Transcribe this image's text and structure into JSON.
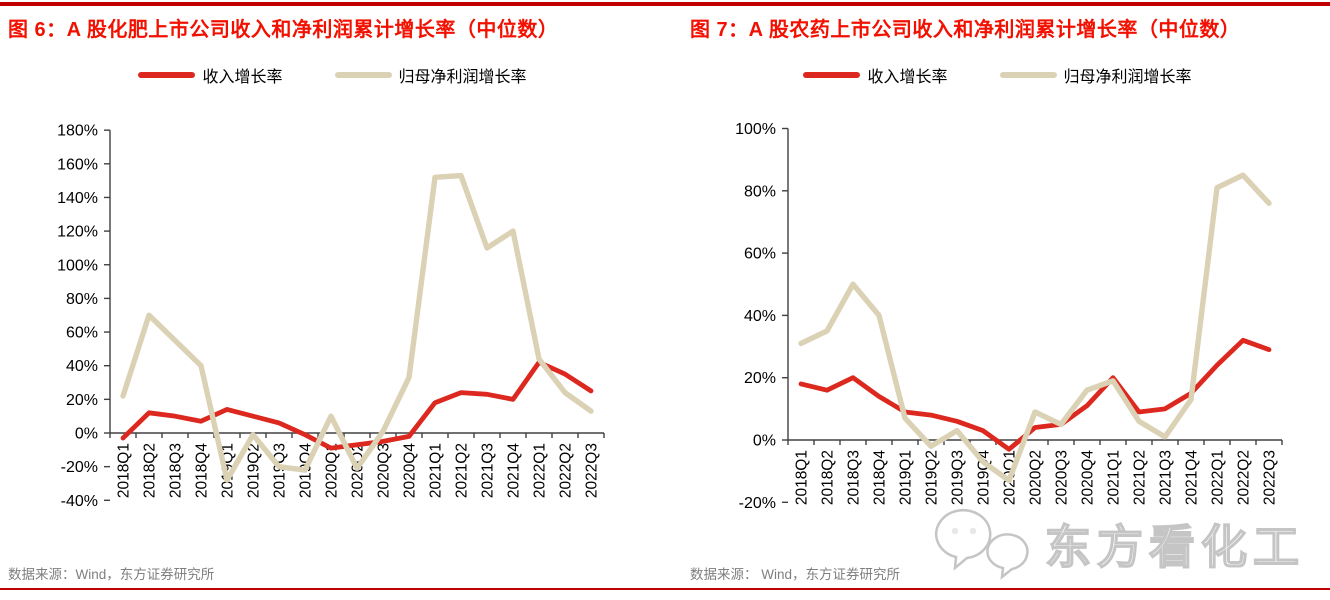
{
  "page": {
    "accent_red": "#c00000",
    "title_color": "#f21000",
    "axis_color": "#404040",
    "label_color": "#000000",
    "footer_color": "#7f7f7f"
  },
  "figures": [
    {
      "title": "图 6：A 股化肥上市公司收入和净利润累计增长率（中位数）",
      "source_note": "数据来源：Wind，东方证券研究所",
      "chart_data": {
        "type": "line",
        "title": "A股化肥上市公司收入和净利润累计增长率（中位数）",
        "categories": [
          "2018Q1",
          "2018Q2",
          "2018Q3",
          "2018Q4",
          "2019Q1",
          "2019Q2",
          "2019Q3",
          "2019Q4",
          "2020Q1",
          "2020Q2",
          "2020Q3",
          "2020Q4",
          "2021Q1",
          "2021Q2",
          "2021Q3",
          "2021Q4",
          "2022Q1",
          "2022Q2",
          "2022Q3"
        ],
        "series": [
          {
            "name": "收入增长率",
            "color": "#dc281e",
            "values": [
              -3,
              12,
              10,
              7,
              14,
              10,
              6,
              -1,
              -9,
              -7,
              -5,
              -2,
              18,
              24,
              23,
              20,
              42,
              35,
              25
            ]
          },
          {
            "name": "归母净利润增长率",
            "color": "#dbd1b4",
            "values": [
              22,
              70,
              55,
              40,
              -28,
              -1,
              -20,
              -22,
              10,
              -21,
              1,
              33,
              152,
              153,
              110,
              120,
              44,
              24,
              13
            ]
          }
        ],
        "ylim": [
          -40,
          180
        ],
        "yticks": [
          180,
          160,
          140,
          120,
          100,
          80,
          60,
          40,
          20,
          0,
          -20,
          -40
        ],
        "ytick_suffix": "%",
        "grid": false,
        "legend_position": "top"
      }
    },
    {
      "title": "图 7：A 股农药上市公司收入和净利润累计增长率（中位数）",
      "source_note": "数据来源： Wind，东方证券研究所",
      "chart_data": {
        "type": "line",
        "title": "A股农药上市公司收入和净利润累计增长率（中位数）",
        "categories": [
          "2018Q1",
          "2018Q2",
          "2018Q3",
          "2018Q4",
          "2019Q1",
          "2019Q2",
          "2019Q3",
          "2019Q4",
          "2020Q1",
          "2020Q2",
          "2020Q3",
          "2020Q4",
          "2021Q1",
          "2021Q2",
          "2021Q3",
          "2021Q4",
          "2022Q1",
          "2022Q2",
          "2022Q3"
        ],
        "series": [
          {
            "name": "收入增长率",
            "color": "#dc281e",
            "values": [
              18,
              16,
              20,
              14,
              9,
              8,
              6,
              3,
              -3,
              4,
              5,
              11,
              20,
              9,
              10,
              15,
              24,
              32,
              29
            ]
          },
          {
            "name": "归母净利润增长率",
            "color": "#dbd1b4",
            "values": [
              31,
              35,
              50,
              40,
              7,
              -2,
              3,
              -7,
              -13,
              9,
              5,
              16,
              19,
              6,
              1,
              13,
              81,
              85,
              76
            ]
          }
        ],
        "ylim": [
          -20,
          100
        ],
        "yticks": [
          100,
          80,
          60,
          40,
          20,
          0,
          -20
        ],
        "ytick_suffix": "%",
        "grid": false,
        "legend_position": "top"
      }
    }
  ],
  "watermark": {
    "icon": "wechat-logo",
    "text": "东方看化工"
  }
}
